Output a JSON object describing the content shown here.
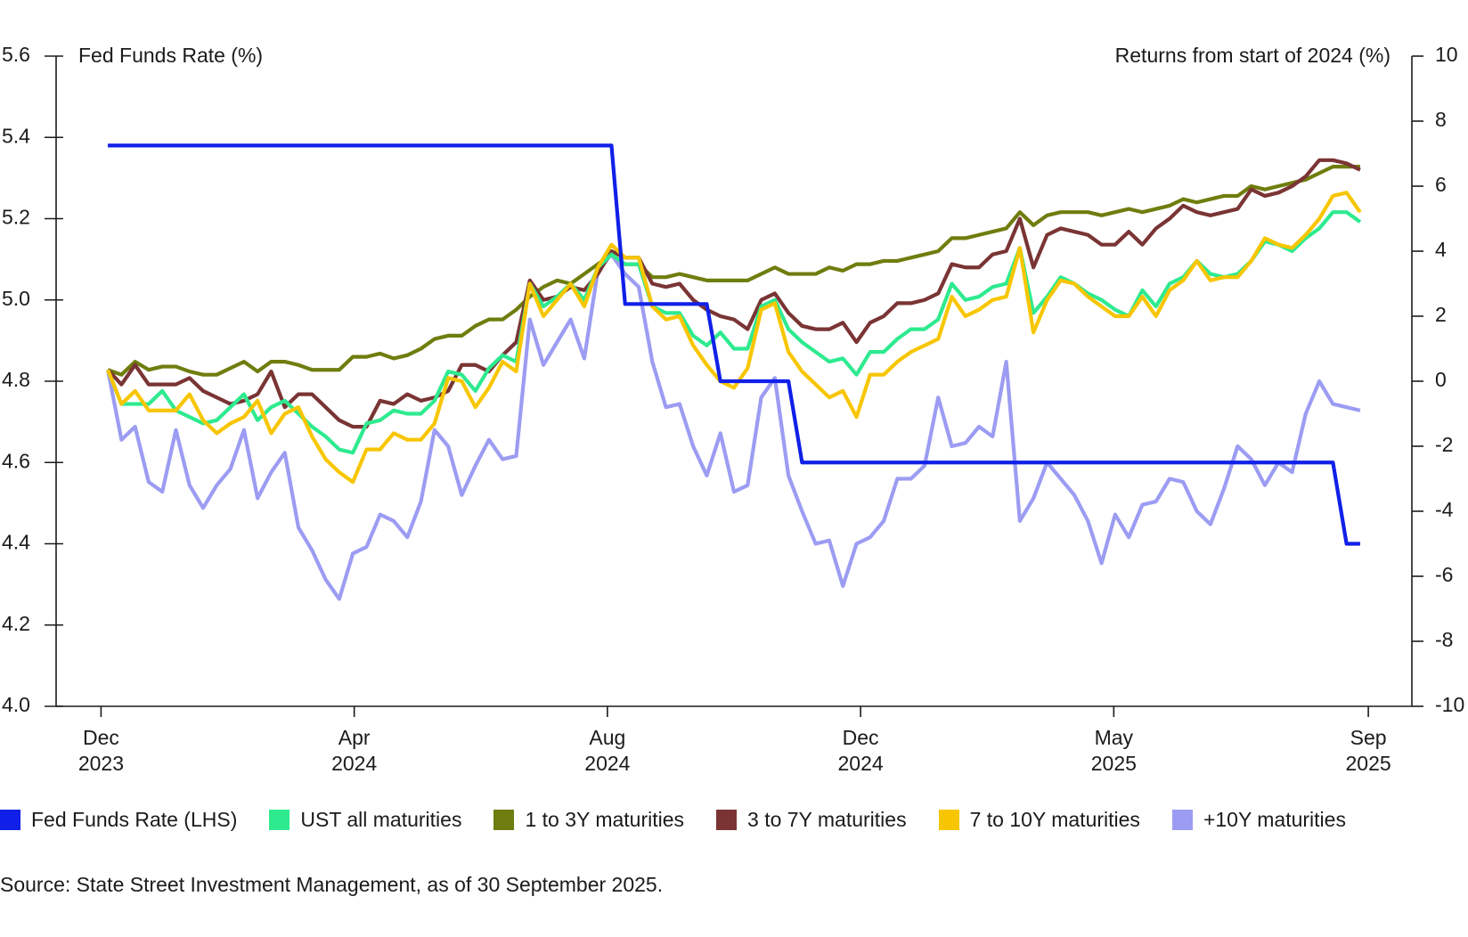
{
  "chart_data": {
    "type": "line",
    "y_title": "Fed Funds Rate (%)",
    "y2_title": "Returns from start of 2024 (%)",
    "source": "Source: State Street Investment Management, as of 30 September 2025.",
    "x": [
      0,
      1,
      2,
      3,
      4,
      5,
      6,
      7,
      8,
      9,
      10,
      11,
      12,
      13,
      14,
      15,
      16,
      17,
      18,
      19,
      20,
      21,
      22,
      23,
      24,
      25,
      26,
      27,
      28,
      29,
      30,
      31,
      32,
      33,
      34,
      35,
      36,
      37,
      38,
      39,
      40,
      41,
      42,
      43,
      44,
      45,
      46,
      47,
      48,
      49,
      50,
      51,
      52,
      53,
      54,
      55,
      56,
      57,
      58,
      59,
      60,
      61,
      62,
      63,
      64,
      65,
      66,
      67,
      68,
      69,
      70,
      71,
      72,
      73,
      74,
      75,
      76,
      77,
      78,
      79,
      80,
      81,
      82,
      83,
      84,
      85,
      86,
      87,
      88,
      89,
      90,
      91,
      92
    ],
    "xlim": [
      -3.8,
      95.8
    ],
    "xticks": [
      {
        "value": -0.5,
        "label": "Dec 2023"
      },
      {
        "value": 18.1,
        "label": "Apr 2024"
      },
      {
        "value": 36.7,
        "label": "Aug 2024"
      },
      {
        "value": 55.3,
        "label": "Dec 2024"
      },
      {
        "value": 73.9,
        "label": "May 2025"
      },
      {
        "value": 92.6,
        "label": "Sep 2025"
      }
    ],
    "ylim": [
      4.0,
      5.6
    ],
    "yticks": [
      {
        "value": 4.0,
        "label": "4.0"
      },
      4.2,
      4.4,
      4.6,
      4.8,
      {
        "value": 5.0,
        "label": "5.0"
      },
      5.2,
      5.4,
      5.6
    ],
    "y2lim": [
      -10,
      10
    ],
    "y2ticks": [
      -10,
      -8,
      -6,
      -4,
      -2,
      0,
      2,
      4,
      6,
      8,
      10
    ],
    "series": [
      {
        "name": "Fed Funds Rate (LHS)",
        "color": "#1020e8",
        "axis": "y",
        "values": [
          5.38,
          5.38,
          5.38,
          5.38,
          5.38,
          5.38,
          5.38,
          5.38,
          5.38,
          5.38,
          5.38,
          5.38,
          5.38,
          5.38,
          5.38,
          5.38,
          5.38,
          5.38,
          5.38,
          5.38,
          5.38,
          5.38,
          5.38,
          5.38,
          5.38,
          5.38,
          5.38,
          5.38,
          5.38,
          5.38,
          5.38,
          5.38,
          5.38,
          5.38,
          5.38,
          5.38,
          5.38,
          5.38,
          4.99,
          4.99,
          4.99,
          4.99,
          4.99,
          4.99,
          4.99,
          4.8,
          4.8,
          4.8,
          4.8,
          4.8,
          4.8,
          4.6,
          4.6,
          4.6,
          4.6,
          4.6,
          4.6,
          4.6,
          4.6,
          4.6,
          4.6,
          4.6,
          4.6,
          4.6,
          4.6,
          4.6,
          4.6,
          4.6,
          4.6,
          4.6,
          4.6,
          4.6,
          4.6,
          4.6,
          4.6,
          4.6,
          4.6,
          4.6,
          4.6,
          4.6,
          4.6,
          4.6,
          4.6,
          4.6,
          4.6,
          4.6,
          4.6,
          4.6,
          4.6,
          4.6,
          4.6,
          4.4,
          4.4
        ]
      },
      {
        "name": "UST all maturities",
        "color": "#2eea8f",
        "axis": "y2",
        "values": [
          0.35,
          -0.7,
          -0.7,
          -0.7,
          -0.3,
          -0.9,
          -1.1,
          -1.3,
          -1.2,
          -0.8,
          -0.4,
          -1.2,
          -0.8,
          -0.6,
          -1.0,
          -1.4,
          -1.7,
          -2.1,
          -2.2,
          -1.3,
          -1.2,
          -0.9,
          -1.0,
          -1.0,
          -0.6,
          0.3,
          0.2,
          -0.3,
          0.4,
          0.8,
          0.6,
          3.0,
          2.3,
          2.6,
          3.0,
          2.5,
          3.5,
          3.9,
          3.6,
          3.6,
          2.3,
          2.1,
          2.1,
          1.4,
          1.1,
          1.5,
          1.0,
          1.0,
          2.3,
          2.5,
          1.6,
          1.2,
          0.9,
          0.6,
          0.7,
          0.2,
          0.9,
          0.9,
          1.3,
          1.6,
          1.6,
          1.9,
          3.0,
          2.5,
          2.6,
          2.9,
          3.0,
          4.1,
          2.1,
          2.6,
          3.2,
          3.0,
          2.7,
          2.5,
          2.2,
          2.0,
          2.8,
          2.3,
          3.0,
          3.2,
          3.7,
          3.3,
          3.2,
          3.3,
          3.7,
          4.3,
          4.2,
          4.0,
          4.4,
          4.7,
          5.2,
          5.2,
          4.9
        ]
      },
      {
        "name": "1 to 3Y maturities",
        "color": "#6f7d0e",
        "axis": "y2",
        "values": [
          0.35,
          0.2,
          0.6,
          0.35,
          0.45,
          0.45,
          0.3,
          0.2,
          0.2,
          0.4,
          0.6,
          0.3,
          0.6,
          0.6,
          0.5,
          0.35,
          0.35,
          0.35,
          0.75,
          0.75,
          0.85,
          0.7,
          0.8,
          1.0,
          1.3,
          1.4,
          1.4,
          1.7,
          1.9,
          1.9,
          2.2,
          2.6,
          2.9,
          3.1,
          3.0,
          3.3,
          3.6,
          3.9,
          3.6,
          3.6,
          3.2,
          3.2,
          3.3,
          3.2,
          3.1,
          3.1,
          3.1,
          3.1,
          3.3,
          3.5,
          3.3,
          3.3,
          3.3,
          3.5,
          3.4,
          3.6,
          3.6,
          3.7,
          3.7,
          3.8,
          3.9,
          4.0,
          4.4,
          4.4,
          4.5,
          4.6,
          4.7,
          5.2,
          4.8,
          5.1,
          5.2,
          5.2,
          5.2,
          5.1,
          5.2,
          5.3,
          5.2,
          5.3,
          5.4,
          5.6,
          5.5,
          5.6,
          5.7,
          5.7,
          6.0,
          5.9,
          6.0,
          6.1,
          6.2,
          6.4,
          6.6,
          6.6,
          6.6
        ]
      },
      {
        "name": "3 to 7Y maturities",
        "color": "#7a3434",
        "axis": "y2",
        "values": [
          0.35,
          -0.1,
          0.5,
          -0.1,
          -0.1,
          -0.1,
          0.1,
          -0.3,
          -0.5,
          -0.7,
          -0.6,
          -0.4,
          0.3,
          -0.8,
          -0.4,
          -0.4,
          -0.8,
          -1.2,
          -1.4,
          -1.4,
          -0.6,
          -0.7,
          -0.4,
          -0.6,
          -0.5,
          -0.3,
          0.5,
          0.5,
          0.3,
          0.8,
          1.2,
          3.1,
          2.5,
          2.6,
          2.9,
          2.8,
          3.3,
          4.0,
          3.8,
          3.8,
          3.0,
          2.9,
          3.0,
          2.5,
          2.2,
          2.0,
          1.9,
          1.6,
          2.5,
          2.7,
          2.1,
          1.7,
          1.6,
          1.6,
          1.8,
          1.2,
          1.8,
          2.0,
          2.4,
          2.4,
          2.5,
          2.7,
          3.6,
          3.5,
          3.5,
          3.9,
          4.0,
          5.0,
          3.5,
          4.5,
          4.7,
          4.6,
          4.5,
          4.2,
          4.2,
          4.6,
          4.2,
          4.7,
          5.0,
          5.4,
          5.2,
          5.1,
          5.2,
          5.3,
          5.9,
          5.7,
          5.8,
          6.0,
          6.3,
          6.8,
          6.8,
          6.7,
          6.5
        ]
      },
      {
        "name": "7 to 10Y maturities",
        "color": "#f7c600",
        "axis": "y2",
        "values": [
          0.35,
          -0.7,
          -0.3,
          -0.9,
          -0.9,
          -0.9,
          -0.4,
          -1.2,
          -1.6,
          -1.3,
          -1.1,
          -0.6,
          -1.6,
          -1.0,
          -0.8,
          -1.7,
          -2.4,
          -2.8,
          -3.1,
          -2.1,
          -2.1,
          -1.6,
          -1.8,
          -1.8,
          -1.3,
          0.1,
          0.0,
          -0.8,
          -0.2,
          0.6,
          0.3,
          3.0,
          2.0,
          2.5,
          3.0,
          2.3,
          3.5,
          4.2,
          3.8,
          3.8,
          2.3,
          1.9,
          2.0,
          1.1,
          0.5,
          0.0,
          -0.2,
          0.4,
          2.2,
          2.4,
          0.9,
          0.3,
          -0.1,
          -0.5,
          -0.3,
          -1.1,
          0.2,
          0.2,
          0.6,
          0.9,
          1.1,
          1.3,
          2.6,
          2.0,
          2.2,
          2.5,
          2.6,
          4.1,
          1.5,
          2.5,
          3.1,
          3.0,
          2.6,
          2.3,
          2.0,
          2.0,
          2.6,
          2.0,
          2.8,
          3.1,
          3.7,
          3.1,
          3.2,
          3.2,
          3.7,
          4.4,
          4.2,
          4.1,
          4.5,
          5.0,
          5.7,
          5.8,
          5.2
        ]
      },
      {
        "name": "+10Y maturities",
        "color": "#9c9cf3",
        "axis": "y2",
        "values": [
          0.35,
          -1.8,
          -1.4,
          -3.1,
          -3.4,
          -1.5,
          -3.2,
          -3.9,
          -3.2,
          -2.7,
          -1.5,
          -3.6,
          -2.8,
          -2.2,
          -4.5,
          -5.2,
          -6.1,
          -6.7,
          -5.3,
          -5.1,
          -4.1,
          -4.3,
          -4.8,
          -3.7,
          -1.5,
          -2.0,
          -3.5,
          -2.6,
          -1.8,
          -2.4,
          -2.3,
          1.9,
          0.5,
          1.2,
          1.9,
          0.7,
          3.4,
          3.9,
          3.3,
          2.9,
          0.6,
          -0.8,
          -0.7,
          -2.0,
          -2.9,
          -1.6,
          -3.4,
          -3.2,
          -0.5,
          0.1,
          -2.9,
          -4.0,
          -5.0,
          -4.9,
          -6.3,
          -5.0,
          -4.8,
          -4.3,
          -3.0,
          -3.0,
          -2.6,
          -0.5,
          -2.0,
          -1.9,
          -1.4,
          -1.7,
          0.6,
          -4.3,
          -3.6,
          -2.5,
          -3.0,
          -3.5,
          -4.3,
          -5.6,
          -4.1,
          -4.8,
          -3.8,
          -3.7,
          -3.0,
          -3.1,
          -4.0,
          -4.4,
          -3.3,
          -2.0,
          -2.4,
          -3.2,
          -2.5,
          -2.8,
          -1.0,
          0.0,
          -0.7,
          -0.8,
          -0.9
        ]
      }
    ]
  }
}
